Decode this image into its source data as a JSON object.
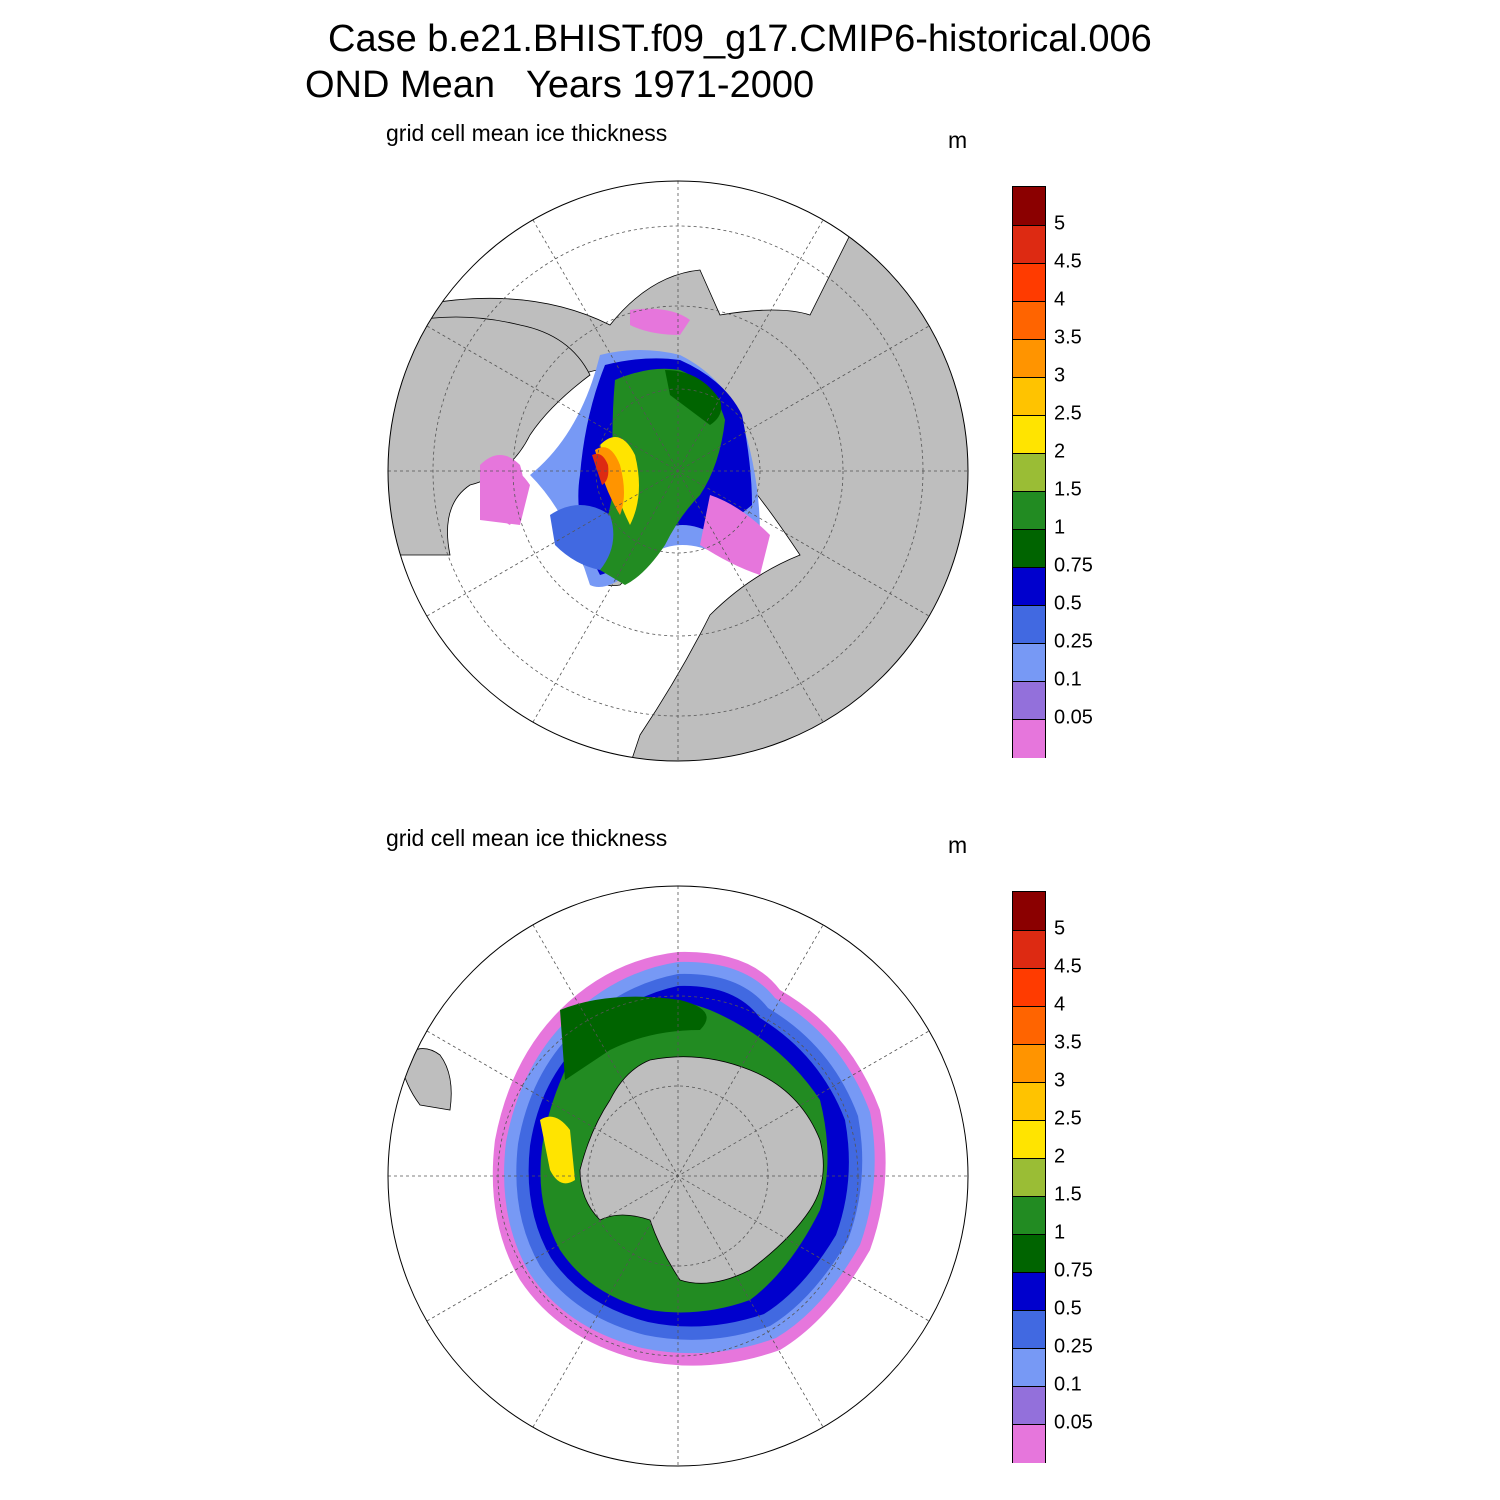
{
  "title": {
    "line1": "Case b.e21.BHIST.f09_g17.CMIP6-historical.006",
    "line2": "OND Mean   Years 1971-2000"
  },
  "panels": [
    {
      "name": "north",
      "subtitle": "grid cell mean ice thickness",
      "units": "m"
    },
    {
      "name": "south",
      "subtitle": "grid cell mean ice thickness",
      "units": "m"
    }
  ],
  "colorbar": {
    "labels": [
      "5",
      "4.5",
      "4",
      "3.5",
      "3",
      "2.5",
      "2",
      "1.5",
      "1",
      "0.75",
      "0.5",
      "0.25",
      "0.1",
      "0.05"
    ],
    "colors": [
      "#8b0000",
      "#dd2a12",
      "#ff3b00",
      "#ff6400",
      "#ff9400",
      "#ffc300",
      "#ffe400",
      "#9abd35",
      "#228b22",
      "#006400",
      "#0000cd",
      "#4169e1",
      "#7799f5",
      "#9370db",
      "#e676dc"
    ]
  },
  "colors": {
    "land": "#bebebe",
    "ocean": "#ffffff",
    "grid": "#555555"
  }
}
